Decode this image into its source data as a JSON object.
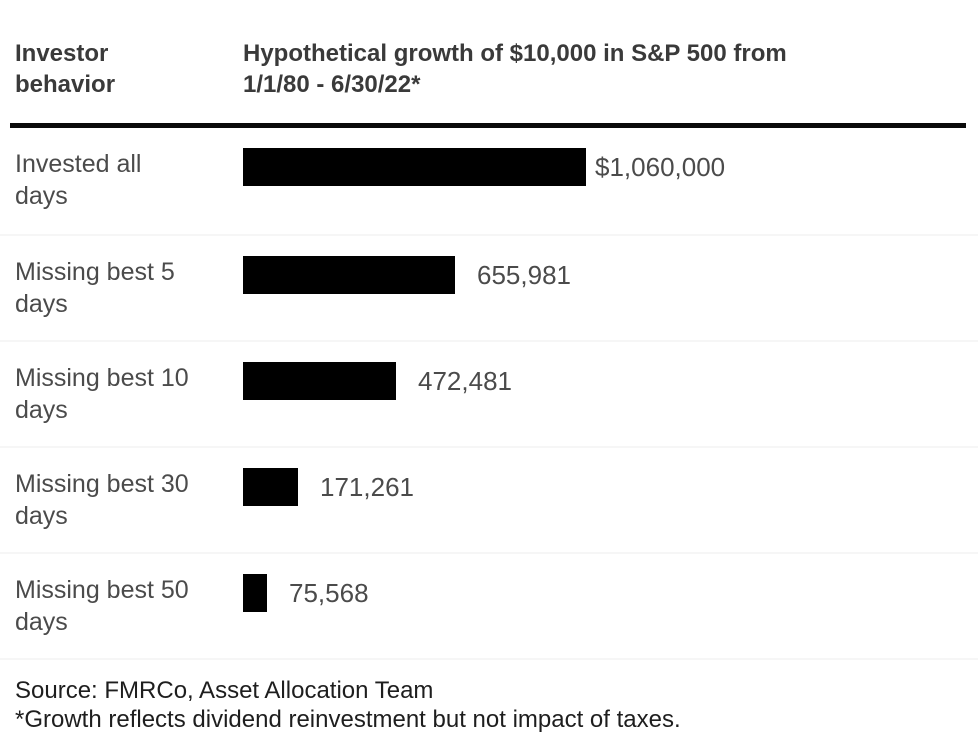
{
  "header": {
    "col1": "Investor\nbehavior",
    "col2": "Hypothetical growth of $10,000 in S&P 500 from\n1/1/80 - 6/30/22*"
  },
  "chart_data": {
    "type": "bar",
    "orientation": "horizontal",
    "title": "Hypothetical growth of $10,000 in S&P 500 from 1/1/80 - 6/30/22*",
    "row_header": "Investor behavior",
    "categories": [
      "Invested all days",
      "Missing best 5 days",
      "Missing best 10 days",
      "Missing best 30 days",
      "Missing best 50 days"
    ],
    "values": [
      1060000,
      655981,
      472481,
      171261,
      75568
    ],
    "value_labels": [
      "$1,060,000",
      "655,981",
      "472,481",
      "171,261",
      "75,568"
    ],
    "xlim": [
      0,
      1060000
    ],
    "bar_color": "#000000",
    "grid": false,
    "legend": "none"
  },
  "rows": [
    {
      "label": "Invested all\ndays",
      "value_label": "$1,060,000"
    },
    {
      "label": "Missing best 5\ndays",
      "value_label": "655,981"
    },
    {
      "label": "Missing best 10\ndays",
      "value_label": "472,481"
    },
    {
      "label": "Missing best 30\ndays",
      "value_label": "171,261"
    },
    {
      "label": "Missing best 50\ndays",
      "value_label": "75,568"
    }
  ],
  "footer": {
    "source": "Source: FMRCo, Asset Allocation Team",
    "footnote": "*Growth reflects dividend reinvestment but not impact of taxes."
  },
  "colors": {
    "bar": "#000000",
    "header_divider": "#0a0a0a",
    "row_separator": "#f6f6f6",
    "header_text": "#3a3a3a",
    "label_text": "#4b4b4b",
    "footer_text": "#1e1e1e",
    "background": "#ffffff"
  }
}
